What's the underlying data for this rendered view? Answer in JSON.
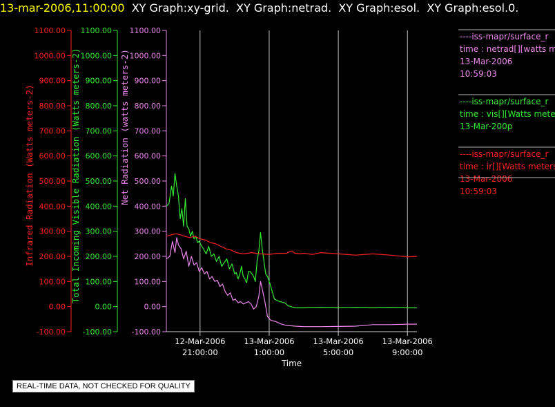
{
  "header": {
    "timestamp": "13-mar-2006,11:00:00",
    "graphs": [
      "XY Graph:xy-grid.",
      "XY Graph:netrad.",
      "XY Graph:esol.",
      "XY Graph:esol.0."
    ]
  },
  "notice": "REAL-TIME DATA, NOT CHECKED FOR QUALITY",
  "colors": {
    "red": "#ff2020",
    "green": "#33ee33",
    "violet": "#ee88ee",
    "grid": "#c8c8c8",
    "axis": "#d0d0d0"
  },
  "legend": [
    {
      "color": "#ee88ee",
      "lines": [
        "----iss-mapr/surface_r",
        "time : netrad[][watts m",
        "13-Mar-2006",
        "10:59:03"
      ]
    },
    {
      "color": "#33ee33",
      "lines": [
        "----iss-mapr/surface_r",
        "time : vis[][Watts meter",
        "13-Mar-200p"
      ]
    },
    {
      "color": "#ff2020",
      "lines": [
        "----iss-mapr/surface_r",
        "time : ir[][Watts meters",
        "13-Mar-2006",
        "10:59:03"
      ]
    }
  ],
  "chart_data": {
    "type": "line",
    "xlabel": "Time",
    "x_ticks": [
      {
        "value": 21,
        "label": [
          "12-Mar-2006",
          "21:00:00"
        ]
      },
      {
        "value": 25,
        "label": [
          "13-Mar-2006",
          "1:00:00"
        ]
      },
      {
        "value": 29,
        "label": [
          "13-Mar-2006",
          "5:00:00"
        ]
      },
      {
        "value": 33,
        "label": [
          "13-Mar-2006",
          "9:00:00"
        ]
      }
    ],
    "xlim": [
      19.05,
      33.55
    ],
    "ylim": [
      -100,
      1100
    ],
    "y_ticks": [
      -100,
      0,
      100,
      200,
      300,
      400,
      500,
      600,
      700,
      800,
      900,
      1000,
      1100
    ],
    "y_tick_labels": [
      "-100.00",
      "0.00",
      "100.00",
      "200.00",
      "300.00",
      "400.00",
      "500.00",
      "600.00",
      "700.00",
      "800.00",
      "900.00",
      "1000.00",
      "1100.00"
    ],
    "axes": [
      {
        "label": "Infrared Radiation (Watts meters-2)",
        "color": "#ff2020"
      },
      {
        "label": "Total Incoming Visible Radiation (Watts meters-2)",
        "color": "#33ee33"
      },
      {
        "label": "Net Radiation (watts meters-2)",
        "color": "#ee88ee"
      }
    ],
    "grid_x": true,
    "series": [
      {
        "color": "#33ee33",
        "x": [
          19.05,
          19.2,
          19.35,
          19.45,
          19.55,
          19.65,
          19.75,
          19.85,
          19.95,
          20.05,
          20.15,
          20.25,
          20.35,
          20.45,
          20.55,
          20.65,
          20.75,
          20.85,
          20.95,
          21.05,
          21.2,
          21.35,
          21.5,
          21.65,
          21.8,
          21.95,
          22.1,
          22.25,
          22.4,
          22.55,
          22.7,
          22.85,
          23.0,
          23.1,
          23.2,
          23.3,
          23.4,
          23.5,
          23.6,
          23.65,
          23.7,
          23.8,
          23.9,
          24.0,
          24.1,
          24.2,
          24.3,
          24.4,
          24.5,
          24.6,
          24.7,
          24.8,
          24.9,
          25.05,
          25.3,
          25.6,
          25.9,
          26.1,
          26.5,
          27.0,
          28.0,
          29.0,
          30.0,
          31.0,
          32.0,
          33.0,
          33.55
        ],
        "y": [
          400,
          410,
          480,
          440,
          530,
          480,
          440,
          350,
          390,
          320,
          430,
          320,
          310,
          280,
          300,
          270,
          280,
          255,
          260,
          245,
          230,
          210,
          240,
          200,
          210,
          180,
          200,
          160,
          175,
          190,
          150,
          170,
          130,
          135,
          110,
          130,
          160,
          120,
          110,
          100,
          95,
          140,
          140,
          130,
          120,
          100,
          180,
          220,
          295,
          230,
          180,
          130,
          120,
          90,
          30,
          20,
          15,
          3,
          -5,
          -5,
          -4,
          -5,
          -4,
          -5,
          -4,
          -5,
          -5
        ]
      },
      {
        "color": "#ff2020",
        "x": [
          19.05,
          19.3,
          19.6,
          19.9,
          20.1,
          20.4,
          20.7,
          21.0,
          21.3,
          21.6,
          21.9,
          22.2,
          22.5,
          22.8,
          23.1,
          23.5,
          24.0,
          24.5,
          25.0,
          25.5,
          26.0,
          26.3,
          26.5,
          26.8,
          27.0,
          27.5,
          28.0,
          29.0,
          30.0,
          31.0,
          32.0,
          33.0,
          33.55
        ],
        "y": [
          280,
          285,
          290,
          285,
          280,
          275,
          280,
          270,
          265,
          255,
          250,
          240,
          230,
          225,
          215,
          210,
          215,
          210,
          208,
          212,
          212,
          222,
          212,
          210,
          212,
          208,
          215,
          210,
          205,
          210,
          205,
          198,
          200
        ]
      },
      {
        "color": "#ee88ee",
        "x": [
          19.05,
          19.25,
          19.4,
          19.55,
          19.65,
          19.75,
          19.9,
          20.05,
          20.2,
          20.35,
          20.5,
          20.65,
          20.8,
          20.95,
          21.1,
          21.25,
          21.4,
          21.55,
          21.7,
          21.85,
          22.0,
          22.15,
          22.3,
          22.45,
          22.6,
          22.75,
          22.9,
          23.05,
          23.2,
          23.35,
          23.5,
          23.65,
          23.8,
          23.95,
          24.1,
          24.25,
          24.4,
          24.5,
          24.6,
          24.75,
          24.9,
          25.1,
          25.4,
          25.7,
          26.0,
          26.5,
          27.0,
          28.0,
          29.0,
          30.0,
          31.0,
          32.0,
          33.0,
          33.55
        ],
        "y": [
          190,
          200,
          260,
          215,
          275,
          245,
          230,
          190,
          220,
          160,
          200,
          165,
          175,
          140,
          155,
          130,
          140,
          110,
          120,
          100,
          105,
          80,
          90,
          60,
          45,
          55,
          25,
          30,
          15,
          20,
          10,
          15,
          20,
          10,
          -10,
          0,
          40,
          100,
          70,
          20,
          -40,
          -55,
          -60,
          -70,
          -75,
          -78,
          -80,
          -80,
          -79,
          -78,
          -72,
          -72,
          -70,
          -70
        ]
      }
    ]
  }
}
